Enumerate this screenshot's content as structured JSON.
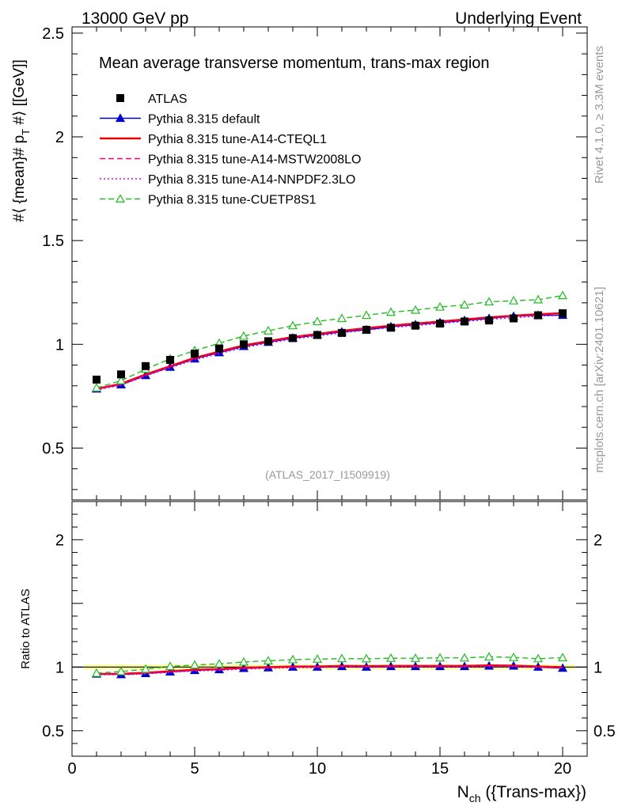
{
  "header": {
    "energy_label": "13000 GeV pp",
    "category_label": "Underlying Event"
  },
  "side": {
    "rivet_label": "Rivet 4.1.0, ≥ 3.3M events",
    "source_label": "mcplots.cern.ch [arXiv:2401.10621]"
  },
  "chart_data": {
    "type": "line",
    "title": "Mean average transverse momentum, trans-max region",
    "analysis_label": "(ATLAS_2017_I1509919)",
    "ylabel": "#⟨ {mean}# p_{T} #⟩ [[GeV]]",
    "ylabel_main": "#⟨ {mean}# p",
    "ylabel_sub": "T",
    "ylabel_tail": " #⟩ [[GeV]]",
    "xlabel": "N_ch ({Trans-max})",
    "xlabel_main": "N",
    "xlabel_sub": "ch",
    "xlabel_tail": " ({Trans-max})",
    "ratio_ylabel": "Ratio to ATLAS",
    "xlim": [
      0,
      21
    ],
    "ylim": [
      0.25,
      2.53
    ],
    "ratio_ylim": [
      0.3,
      2.3
    ],
    "x_ticks": [
      0,
      5,
      10,
      15,
      20
    ],
    "x_tick_labels": [
      "0",
      "5",
      "10",
      "15",
      "20"
    ],
    "y_ticks": [
      0.5,
      1,
      1.5,
      2,
      2.5
    ],
    "y_tick_labels": [
      "0.5",
      "1",
      "1.5",
      "2",
      "2.5"
    ],
    "ratio_ticks": [
      0.5,
      1,
      2
    ],
    "ratio_tick_labels": [
      "0.5",
      "1",
      "2"
    ],
    "x": [
      1,
      2,
      3,
      4,
      5,
      6,
      7,
      8,
      9,
      10,
      11,
      12,
      13,
      14,
      15,
      16,
      17,
      18,
      19,
      20
    ],
    "data": {
      "name": "ATLAS",
      "values": [
        0.83,
        0.855,
        0.895,
        0.925,
        0.955,
        0.98,
        1.0,
        1.015,
        1.03,
        1.045,
        1.055,
        1.07,
        1.08,
        1.09,
        1.1,
        1.11,
        1.115,
        1.125,
        1.14,
        1.15
      ]
    },
    "series": [
      {
        "name": "Pythia 8.315 default",
        "color": "#0000cc",
        "style": "solid",
        "marker": "filled-triangle",
        "values": [
          0.785,
          0.805,
          0.85,
          0.89,
          0.93,
          0.96,
          0.99,
          1.01,
          1.03,
          1.045,
          1.06,
          1.07,
          1.085,
          1.095,
          1.105,
          1.115,
          1.125,
          1.135,
          1.14,
          1.14
        ]
      },
      {
        "name": "Pythia 8.315 tune-A14-CTEQL1",
        "color": "#ee0000",
        "style": "solid",
        "marker": "none",
        "values": [
          0.785,
          0.81,
          0.855,
          0.895,
          0.935,
          0.965,
          0.995,
          1.015,
          1.035,
          1.05,
          1.065,
          1.078,
          1.09,
          1.1,
          1.11,
          1.12,
          1.13,
          1.138,
          1.145,
          1.15
        ]
      },
      {
        "name": "Pythia 8.315 tune-A14-MSTW2008LO",
        "color": "#ff0066",
        "style": "dashed",
        "marker": "none",
        "values": [
          0.785,
          0.808,
          0.852,
          0.893,
          0.932,
          0.963,
          0.992,
          1.013,
          1.033,
          1.048,
          1.063,
          1.076,
          1.088,
          1.098,
          1.108,
          1.118,
          1.128,
          1.136,
          1.143,
          1.148
        ]
      },
      {
        "name": "Pythia 8.315 tune-A14-NNPDF2.3LO",
        "color": "#dd00dd",
        "style": "dotted",
        "marker": "none",
        "values": [
          0.78,
          0.803,
          0.847,
          0.887,
          0.925,
          0.955,
          0.984,
          1.005,
          1.025,
          1.04,
          1.055,
          1.068,
          1.08,
          1.09,
          1.1,
          1.11,
          1.12,
          1.128,
          1.135,
          1.14
        ]
      },
      {
        "name": "Pythia 8.315 tune-CUETP8S1",
        "color": "#22bb22",
        "style": "dashed",
        "marker": "open-triangle",
        "values": [
          0.79,
          0.825,
          0.88,
          0.93,
          0.97,
          1.005,
          1.04,
          1.065,
          1.09,
          1.11,
          1.125,
          1.14,
          1.155,
          1.165,
          1.18,
          1.19,
          1.205,
          1.21,
          1.215,
          1.235
        ]
      }
    ]
  }
}
